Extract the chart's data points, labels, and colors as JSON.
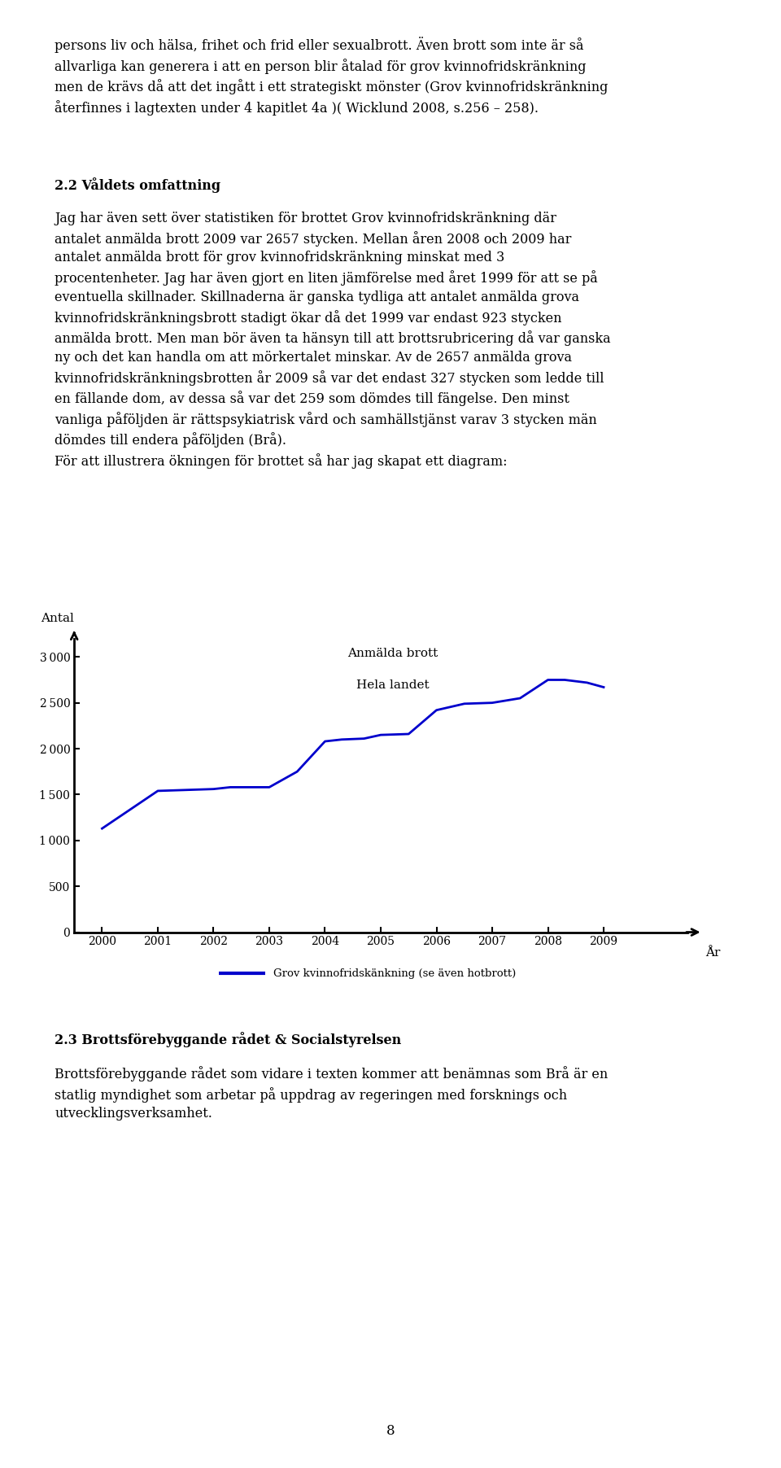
{
  "title_line1": "Anmälda brott",
  "title_line2": "Hela landet",
  "ylabel": "Antal",
  "xlabel": "År",
  "data_x": [
    2000,
    2001,
    2001.5,
    2002,
    2002.3,
    2003,
    2003.5,
    2004,
    2004.3,
    2004.7,
    2005,
    2005.5,
    2006,
    2006.5,
    2007,
    2007.5,
    2008,
    2008.3,
    2008.7,
    2009
  ],
  "data_y": [
    1130,
    1540,
    1550,
    1560,
    1580,
    1580,
    1750,
    2080,
    2100,
    2110,
    2150,
    2160,
    2420,
    2490,
    2500,
    2550,
    2750,
    2750,
    2720,
    2670
  ],
  "line_color": "#0000cc",
  "line_width": 2.0,
  "yticks": [
    0,
    500,
    1000,
    1500,
    2000,
    2500,
    3000
  ],
  "xticks": [
    2000,
    2001,
    2002,
    2003,
    2004,
    2005,
    2006,
    2007,
    2008,
    2009
  ],
  "ylim": [
    0,
    3200
  ],
  "xlim": [
    1999.5,
    2010.5
  ],
  "legend_label": "Grov kvinnofridskänkning (se även hotbrott)",
  "bg_color": "#ffffff",
  "font_family": "serif",
  "text_top": "persons liv och hälsa, frihet och frid eller sexualbrott. Även brott som inte är så\nallvarliga kan generera i att en person blir åtalad för grov kvinnofridskränkning\nmen de krävs då att det ingått i ett strategiskt mönster (Grov kvinnofridskränkning\nåterfinnes i lagtexten under 4 kapitlet 4a )( Wicklund 2008, s.256 – 258).",
  "heading_22": "2.2 Våldets omfattning",
  "text_body": "Jag har även sett över statistiken för brottet Grov kvinnofridskränkning där\nantalet anmälda brott 2009 var 2657 stycken. Mellan åren 2008 och 2009 har\nantalet anmälda brott för grov kvinnofridskränkning minskat med 3\nprocentenheter. Jag har även gjort en liten jämförelse med året 1999 för att se på\neventuella skillnader. Skillnaderna är ganska tydliga att antalet anmälda grova\nkvinnofridskränkningsbrott stadigt ökar då det 1999 var endast 923 stycken\nanmälda brott. Men man bör även ta hänsyn till att brottsrubricering då var ganska\nny och det kan handla om att mörkertalet minskar. Av de 2657 anmälda grova\nkvinnofridskränkningsbrotten år 2009 så var det endast 327 stycken som ledde till\nen fällande dom, av dessa så var det 259 som dömdes till fängelse. Den minst\nvanliga påföljden är rättspsykiatrisk vård och samhällstjänst varav 3 stycken män\ndömdes till endera påföljden (Brå).\nFör att illustrera ökningen för brottet så har jag skapat ett diagram:",
  "heading_23": "2.3 Brottsförebyggande rådet & Socialstyrelsen",
  "text_bottom": "Brottsförebyggande rådet som vidare i texten kommer att benämnas som Brå är en\nstatlig myndighet som arbetar på uppdrag av regeringen med forsknings och\nutvecklingsverksamhet.",
  "page_number": "8"
}
